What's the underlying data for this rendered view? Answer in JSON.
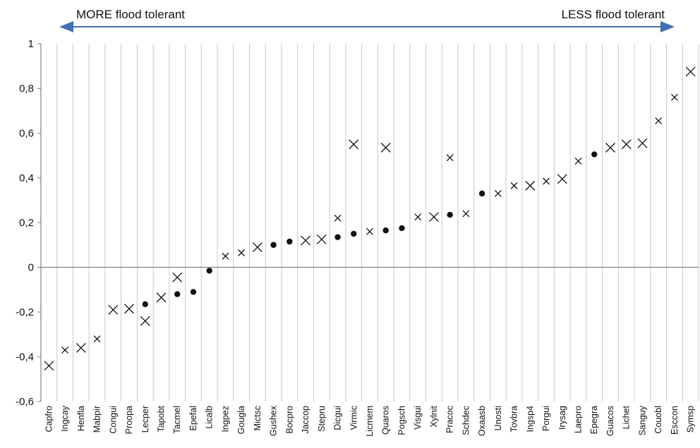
{
  "chart_data": {
    "type": "scatter",
    "title": "",
    "xlabel": "",
    "ylabel": "",
    "ylim": [
      -0.6,
      1
    ],
    "yticks": [
      "1",
      "0,8",
      "0,6",
      "0,4",
      "0,2",
      "0",
      "-0,2",
      "-0,4",
      "-0,6"
    ],
    "grid": "vertical",
    "annotations": {
      "left": "MORE flood tolerant",
      "right": "LESS flood tolerant"
    },
    "colors": {
      "arrow": "#3f6fb5",
      "grid": "#c8c8c8",
      "axis": "#808080",
      "marker": "#111111"
    },
    "categories": [
      "Capfro",
      "Ingcay",
      "Henfla",
      "Mabpir",
      "Congui",
      "Proopa",
      "Lecper",
      "Tapobt",
      "Tacmel",
      "Epefal",
      "Licalb",
      "Ingpez",
      "Gougla",
      "Mictsc",
      "Gushex",
      "Bocpro",
      "Jaccop",
      "Stepru",
      "Dicgui",
      "Virmic",
      "Licmem",
      "Quaros",
      "Pogsch",
      "Visgui",
      "Xylnit",
      "Pracoc",
      "Schdec",
      "Oxaasb",
      "Unosti",
      "Tovbra",
      "Ingsp4",
      "Porgui",
      "Irysag",
      "Laepro",
      "Epegra",
      "Guacos",
      "Lichet",
      "Sanguy",
      "Couobl",
      "Esccon",
      "Symsp"
    ],
    "points": [
      {
        "x": "Capfro",
        "y": -0.44,
        "marker": "cross-large"
      },
      {
        "x": "Ingcay",
        "y": -0.37,
        "marker": "cross-small"
      },
      {
        "x": "Henfla",
        "y": -0.36,
        "marker": "cross-large"
      },
      {
        "x": "Mabpir",
        "y": -0.32,
        "marker": "cross-small"
      },
      {
        "x": "Congui",
        "y": -0.19,
        "marker": "cross-large"
      },
      {
        "x": "Proopa",
        "y": -0.185,
        "marker": "cross-large"
      },
      {
        "x": "Lecper",
        "y": -0.165,
        "marker": "dot"
      },
      {
        "x": "Lecper",
        "y": -0.24,
        "marker": "cross-large"
      },
      {
        "x": "Tapobt",
        "y": -0.135,
        "marker": "cross-large"
      },
      {
        "x": "Tacmel",
        "y": -0.045,
        "marker": "cross-large"
      },
      {
        "x": "Tacmel",
        "y": -0.12,
        "marker": "dot"
      },
      {
        "x": "Epefal",
        "y": -0.11,
        "marker": "dot"
      },
      {
        "x": "Licalb",
        "y": -0.015,
        "marker": "dot"
      },
      {
        "x": "Ingpez",
        "y": 0.05,
        "marker": "cross-small"
      },
      {
        "x": "Gougla",
        "y": 0.065,
        "marker": "cross-small"
      },
      {
        "x": "Mictsc",
        "y": 0.09,
        "marker": "cross-large"
      },
      {
        "x": "Gushex",
        "y": 0.1,
        "marker": "dot"
      },
      {
        "x": "Bocpro",
        "y": 0.115,
        "marker": "dot"
      },
      {
        "x": "Jaccop",
        "y": 0.12,
        "marker": "cross-large"
      },
      {
        "x": "Stepru",
        "y": 0.125,
        "marker": "cross-large"
      },
      {
        "x": "Dicgui",
        "y": 0.22,
        "marker": "cross-small"
      },
      {
        "x": "Dicgui",
        "y": 0.135,
        "marker": "dot"
      },
      {
        "x": "Virmic",
        "y": 0.55,
        "marker": "cross-large"
      },
      {
        "x": "Virmic",
        "y": 0.15,
        "marker": "dot"
      },
      {
        "x": "Licmem",
        "y": 0.16,
        "marker": "cross-small"
      },
      {
        "x": "Quaros",
        "y": 0.535,
        "marker": "cross-large"
      },
      {
        "x": "Quaros",
        "y": 0.165,
        "marker": "dot"
      },
      {
        "x": "Pogsch",
        "y": 0.175,
        "marker": "dot"
      },
      {
        "x": "Visgui",
        "y": 0.225,
        "marker": "cross-small"
      },
      {
        "x": "Xylnit",
        "y": 0.225,
        "marker": "cross-large"
      },
      {
        "x": "Pracoc",
        "y": 0.49,
        "marker": "cross-small"
      },
      {
        "x": "Pracoc",
        "y": 0.235,
        "marker": "dot"
      },
      {
        "x": "Schdec",
        "y": 0.24,
        "marker": "cross-small"
      },
      {
        "x": "Oxaasb",
        "y": 0.33,
        "marker": "dot"
      },
      {
        "x": "Unosti",
        "y": 0.33,
        "marker": "cross-small"
      },
      {
        "x": "Tovbra",
        "y": 0.365,
        "marker": "cross-small"
      },
      {
        "x": "Ingsp4",
        "y": 0.365,
        "marker": "cross-large"
      },
      {
        "x": "Porgui",
        "y": 0.385,
        "marker": "cross-small"
      },
      {
        "x": "Irysag",
        "y": 0.395,
        "marker": "cross-large"
      },
      {
        "x": "Laepro",
        "y": 0.475,
        "marker": "cross-small"
      },
      {
        "x": "Epegra",
        "y": 0.505,
        "marker": "dot"
      },
      {
        "x": "Guacos",
        "y": 0.535,
        "marker": "cross-large"
      },
      {
        "x": "Lichet",
        "y": 0.55,
        "marker": "cross-large"
      },
      {
        "x": "Sanguy",
        "y": 0.555,
        "marker": "cross-large"
      },
      {
        "x": "Couobl",
        "y": 0.655,
        "marker": "cross-small"
      },
      {
        "x": "Esccon",
        "y": 0.76,
        "marker": "cross-small"
      },
      {
        "x": "Symsp",
        "y": 0.875,
        "marker": "cross-large"
      }
    ]
  }
}
